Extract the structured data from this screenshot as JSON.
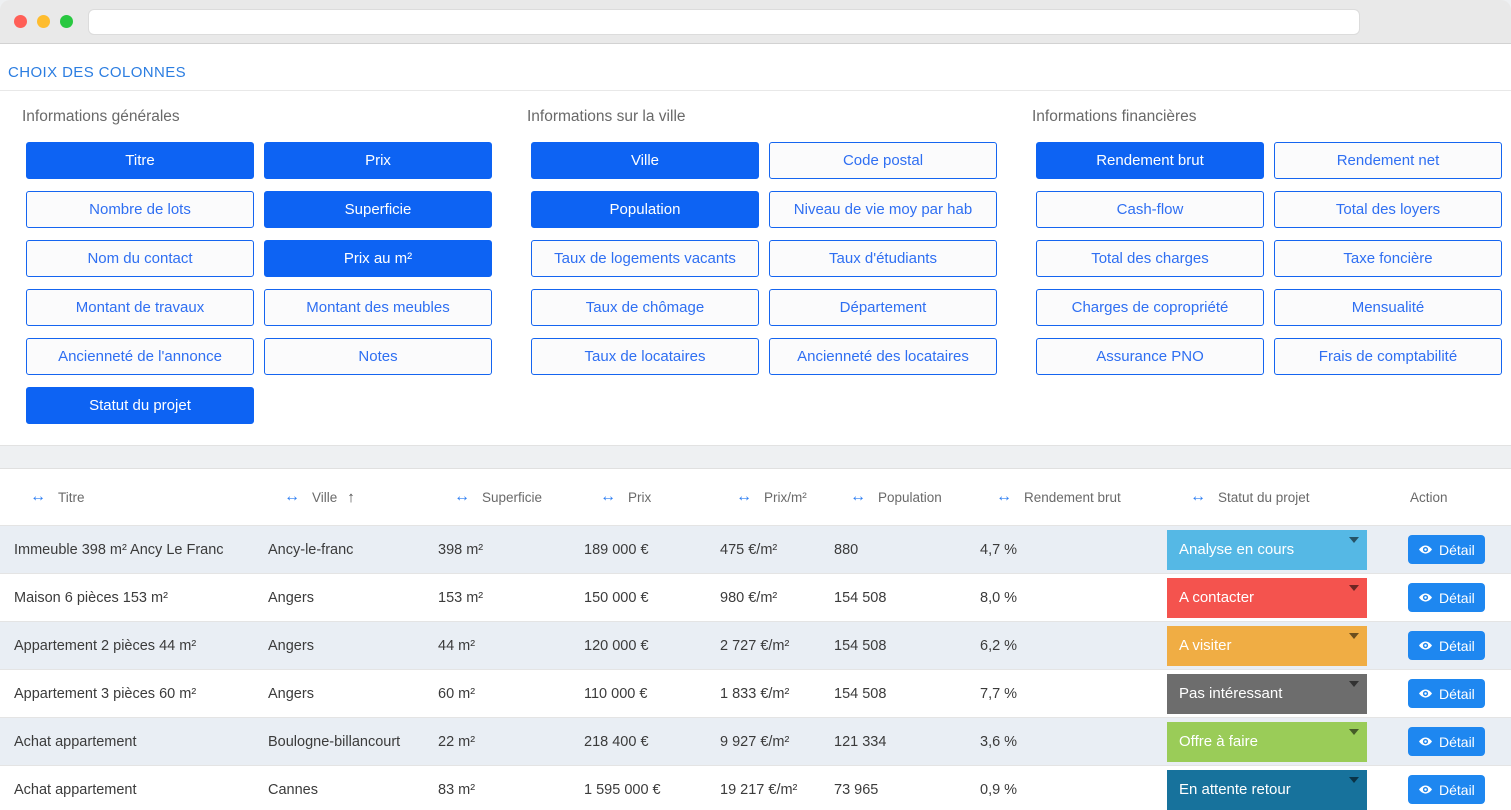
{
  "browser": {
    "url_value": "",
    "controls": {
      "close": "close",
      "minimize": "minimize",
      "maximize": "maximize"
    }
  },
  "page": {
    "title": "CHOIX DES COLONNES",
    "groups": [
      {
        "title": "Informations générales",
        "buttons": [
          {
            "label": "Titre",
            "active": true
          },
          {
            "label": "Prix",
            "active": true
          },
          {
            "label": "Nombre de lots",
            "active": false
          },
          {
            "label": "Superficie",
            "active": true
          },
          {
            "label": "Nom du contact",
            "active": false
          },
          {
            "label": "Prix au m²",
            "active": true
          },
          {
            "label": "Montant de travaux",
            "active": false
          },
          {
            "label": "Montant des meubles",
            "active": false
          },
          {
            "label": "Ancienneté de l'annonce",
            "active": false
          },
          {
            "label": "Notes",
            "active": false
          },
          {
            "label": "Statut du projet",
            "active": true
          }
        ]
      },
      {
        "title": "Informations sur la ville",
        "buttons": [
          {
            "label": "Ville",
            "active": true
          },
          {
            "label": "Code postal",
            "active": false
          },
          {
            "label": "Population",
            "active": true
          },
          {
            "label": "Niveau de vie moy par hab",
            "active": false
          },
          {
            "label": "Taux de logements vacants",
            "active": false
          },
          {
            "label": "Taux d'étudiants",
            "active": false
          },
          {
            "label": "Taux de chômage",
            "active": false
          },
          {
            "label": "Département",
            "active": false
          },
          {
            "label": "Taux de locataires",
            "active": false
          },
          {
            "label": "Ancienneté des locataires",
            "active": false
          }
        ]
      },
      {
        "title": "Informations financières",
        "buttons": [
          {
            "label": "Rendement brut",
            "active": true
          },
          {
            "label": "Rendement net",
            "active": false
          },
          {
            "label": "Cash-flow",
            "active": false
          },
          {
            "label": "Total des loyers",
            "active": false
          },
          {
            "label": "Total des charges",
            "active": false
          },
          {
            "label": "Taxe foncière",
            "active": false
          },
          {
            "label": "Charges de copropriété",
            "active": false
          },
          {
            "label": "Mensualité",
            "active": false
          },
          {
            "label": "Assurance PNO",
            "active": false
          },
          {
            "label": "Frais de comptabilité",
            "active": false
          }
        ]
      }
    ]
  },
  "table": {
    "resize_icon": "↔",
    "sort_icon": "↑",
    "detail_label": "Détail",
    "columns": [
      {
        "label": "Titre",
        "resizable": true,
        "sorted": false
      },
      {
        "label": "Ville",
        "resizable": true,
        "sorted": true
      },
      {
        "label": "Superficie",
        "resizable": true,
        "sorted": false
      },
      {
        "label": "Prix",
        "resizable": true,
        "sorted": false
      },
      {
        "label": "Prix/m²",
        "resizable": true,
        "sorted": false
      },
      {
        "label": "Population",
        "resizable": true,
        "sorted": false
      },
      {
        "label": "Rendement brut",
        "resizable": true,
        "sorted": false
      },
      {
        "label": "Statut du projet",
        "resizable": true,
        "sorted": false
      },
      {
        "label": "Action",
        "resizable": false,
        "sorted": false
      }
    ],
    "rows": [
      {
        "titre": "Immeuble 398 m² Ancy Le Franc",
        "ville": "Ancy-le-franc",
        "superficie": "398 m²",
        "prix": "189 000 €",
        "prix_m2": "475 €/m²",
        "population": "880",
        "rendement": "4,7 %",
        "statut": "Analyse en cours",
        "statut_color": "#55b8e5"
      },
      {
        "titre": "Maison 6 pièces 153 m²",
        "ville": "Angers",
        "superficie": "153 m²",
        "prix": "150 000 €",
        "prix_m2": "980 €/m²",
        "population": "154 508",
        "rendement": "8,0 %",
        "statut": "A contacter",
        "statut_color": "#f4534e"
      },
      {
        "titre": "Appartement 2 pièces 44 m²",
        "ville": "Angers",
        "superficie": "44 m²",
        "prix": "120 000 €",
        "prix_m2": "2 727 €/m²",
        "population": "154 508",
        "rendement": "6,2 %",
        "statut": "A visiter",
        "statut_color": "#f0ad44"
      },
      {
        "titre": "Appartement 3 pièces 60 m²",
        "ville": "Angers",
        "superficie": "60 m²",
        "prix": "110 000 €",
        "prix_m2": "1 833 €/m²",
        "population": "154 508",
        "rendement": "7,7 %",
        "statut": "Pas intéressant",
        "statut_color": "#6d6d6d"
      },
      {
        "titre": "Achat appartement",
        "ville": "Boulogne-billancourt",
        "superficie": "22 m²",
        "prix": "218 400 €",
        "prix_m2": "9 927 €/m²",
        "population": "121 334",
        "rendement": "3,6 %",
        "statut": "Offre à faire",
        "statut_color": "#9acc58"
      },
      {
        "titre": "Achat appartement",
        "ville": "Cannes",
        "superficie": "83 m²",
        "prix": "1 595 000 €",
        "prix_m2": "19 217 €/m²",
        "population": "73 965",
        "rendement": "0,9 %",
        "statut": "En attente retour",
        "statut_color": "#17729c"
      }
    ]
  },
  "colors": {
    "active_button": "#0d63f3",
    "inactive_button_text": "#2f6ff2",
    "page_title": "#2b7de1",
    "detail_button": "#1e87f0"
  }
}
